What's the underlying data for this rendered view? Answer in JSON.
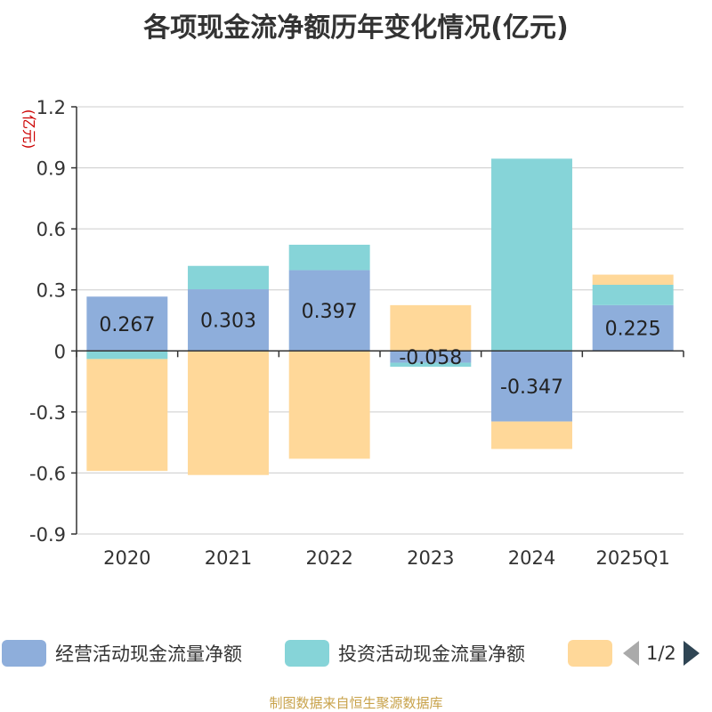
{
  "title": "各项现金流净额历年变化情况(亿元)",
  "source": "制图数据来自恒生聚源数据库",
  "pager": {
    "text": "1/2"
  },
  "chart_data": {
    "type": "bar",
    "stacked": true,
    "title": "各项现金流净额历年变化情况(亿元)",
    "ylabel": "(亿元)",
    "xlabel": "",
    "categories": [
      "2020",
      "2021",
      "2022",
      "2023",
      "2024",
      "2025Q1"
    ],
    "ylim": [
      -0.9,
      1.2
    ],
    "yticks": [
      "1.2",
      "0.9",
      "0.6",
      "0.3",
      "0",
      "-0.3",
      "-0.6",
      "-0.9"
    ],
    "grid": true,
    "legend_position": "bottom",
    "series": [
      {
        "name": "经营活动现金流量净额",
        "color": "#8eaedb",
        "values": [
          0.267,
          0.303,
          0.397,
          -0.058,
          -0.347,
          0.225
        ],
        "labels": [
          "0.267",
          "0.303",
          "0.397",
          "-0.058",
          "-0.347",
          "0.225"
        ]
      },
      {
        "name": "投资活动现金流量净额",
        "color": "#86d4d8",
        "values": [
          -0.04,
          0.115,
          0.125,
          -0.02,
          0.945,
          0.1
        ]
      },
      {
        "name": "",
        "color": "#ffd899",
        "values": [
          -0.55,
          -0.61,
          -0.53,
          0.225,
          -0.135,
          0.05
        ]
      }
    ]
  }
}
